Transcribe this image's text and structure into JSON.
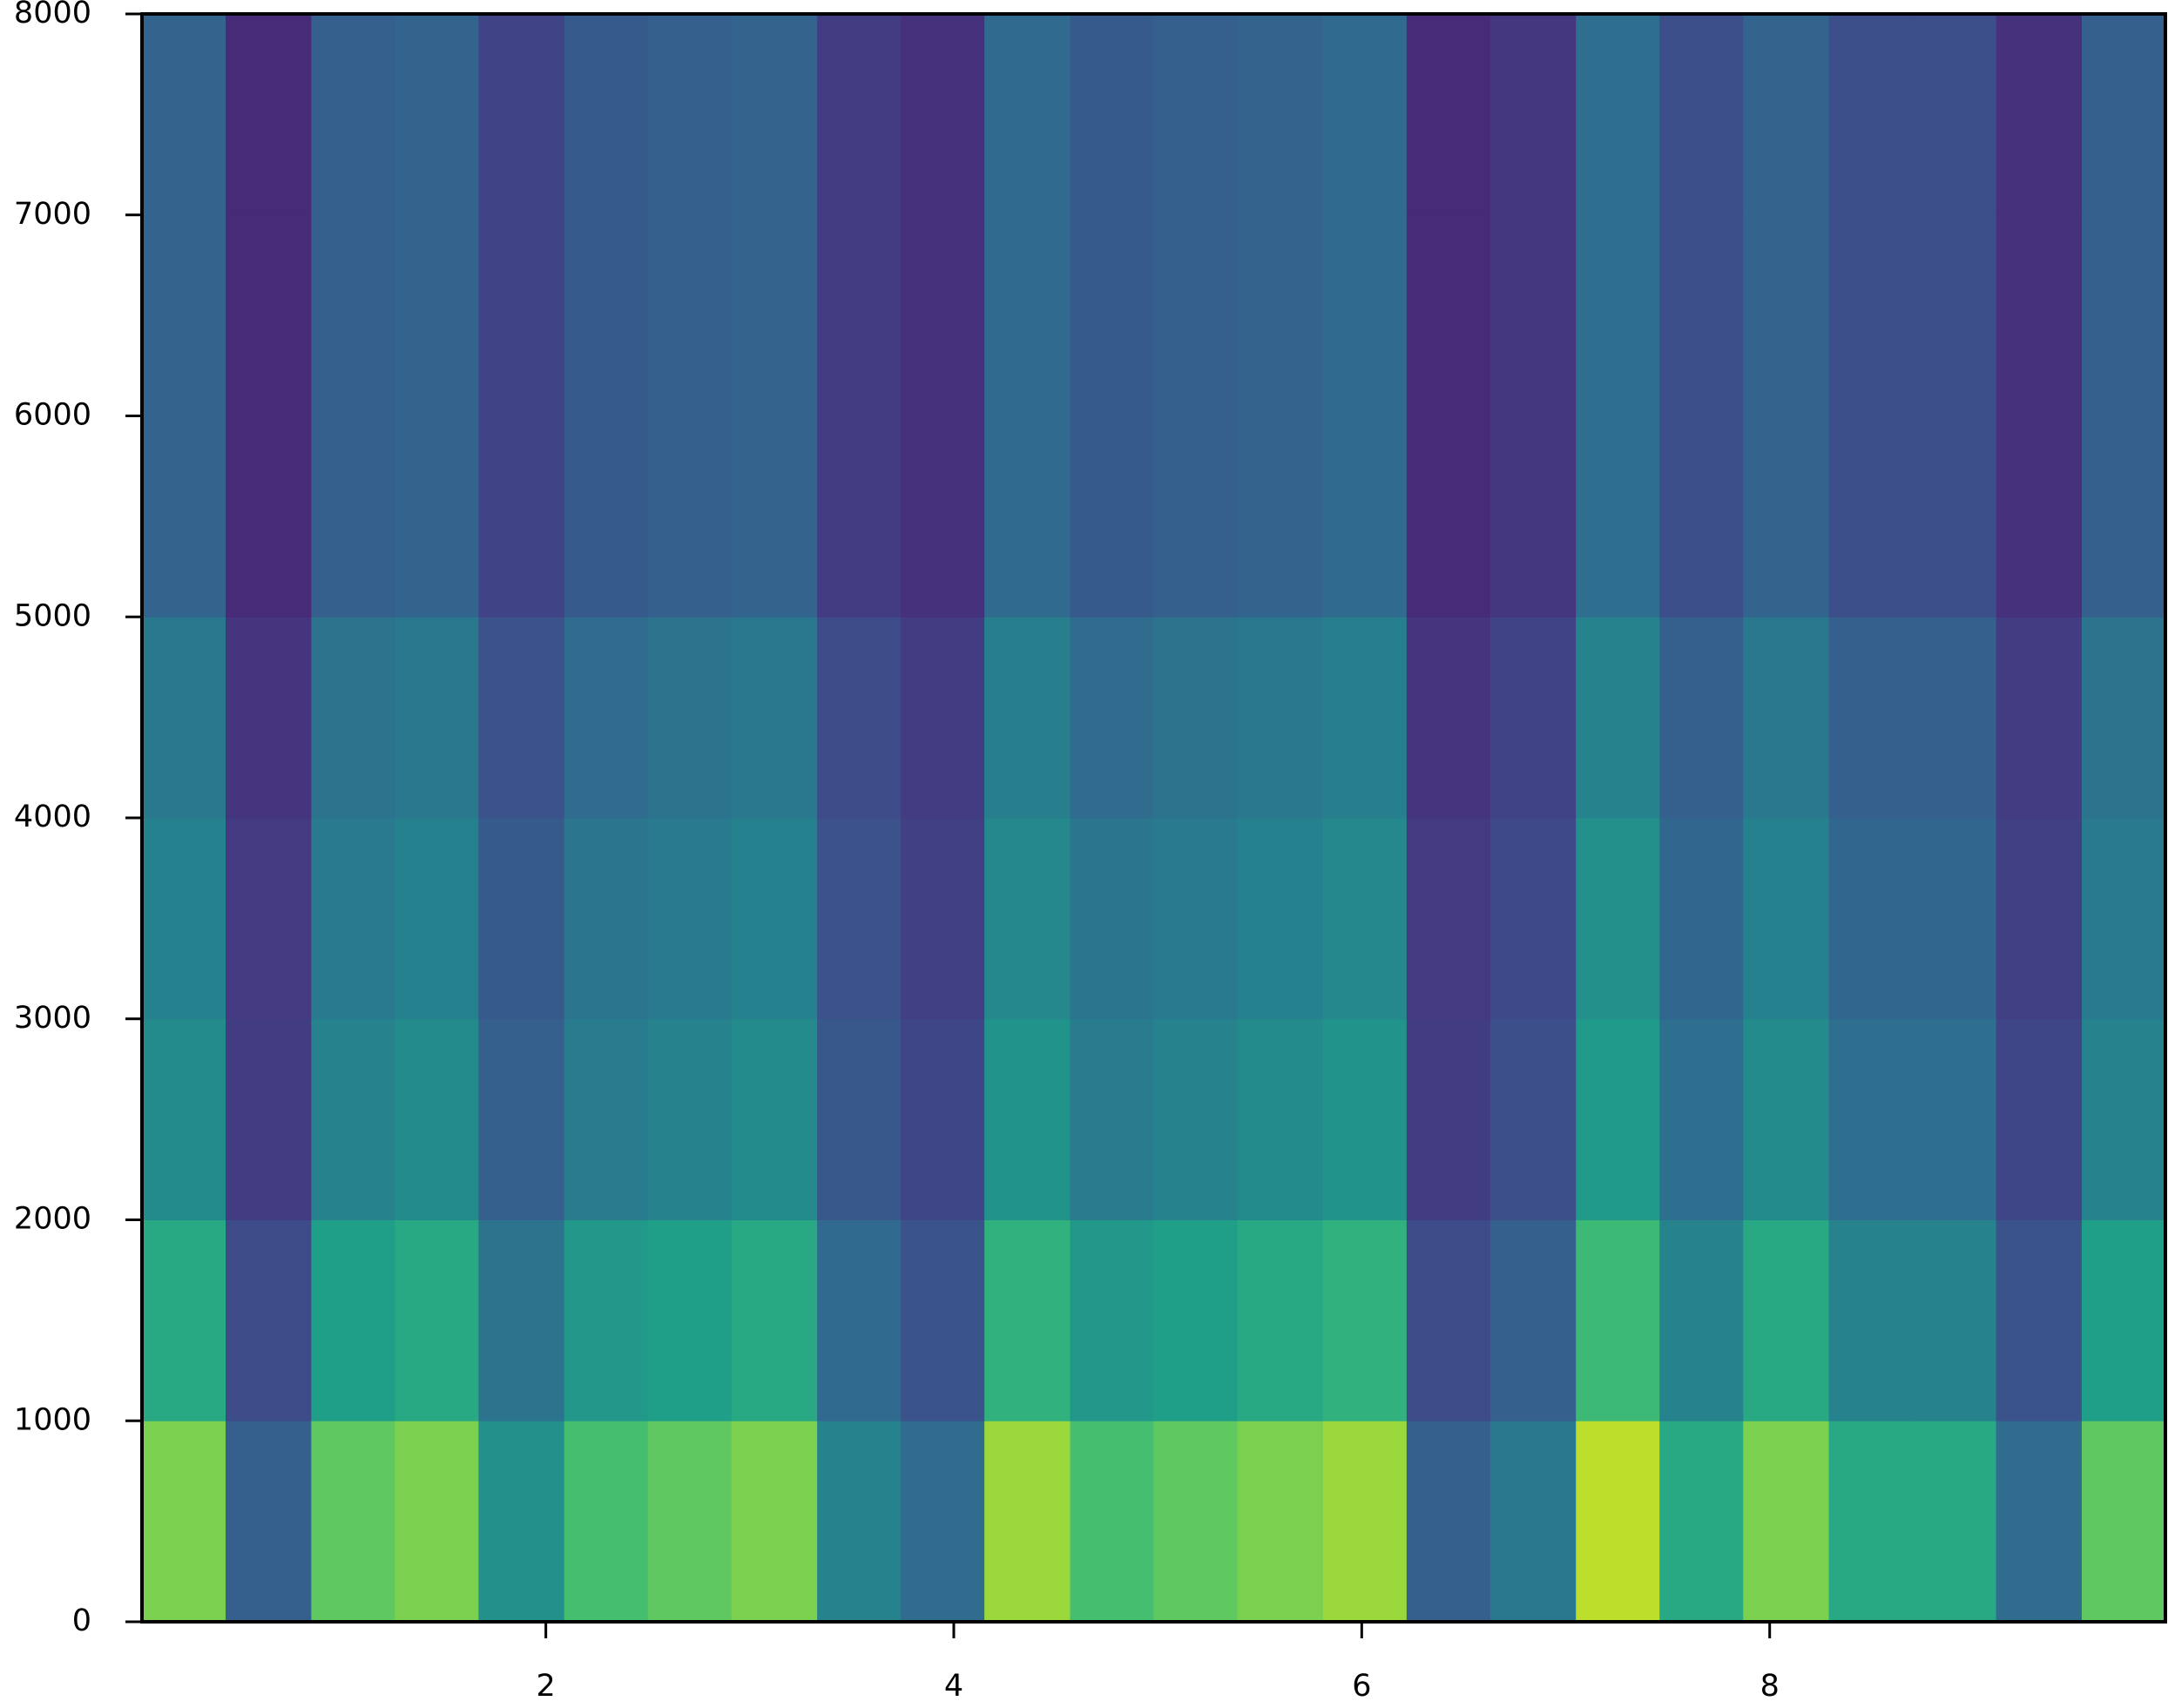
{
  "chart_data": {
    "type": "heatmap",
    "colormap": "viridis",
    "clim": [
      0,
      1
    ],
    "x_bins": [
      0.02,
      0.43,
      0.85,
      1.26,
      1.67,
      2.09,
      2.5,
      2.91,
      3.33,
      3.74,
      4.15,
      4.57,
      4.98,
      5.39,
      5.81,
      6.22,
      6.63,
      7.05,
      7.46,
      7.87,
      8.29,
      8.7,
      9.11,
      9.53,
      9.94
    ],
    "y_bins": [
      0,
      1000,
      2000,
      3000,
      4000,
      5000,
      6000,
      7000,
      8000
    ],
    "values": [
      [
        0.8,
        0.3,
        0.75,
        0.8,
        0.5,
        0.7,
        0.75,
        0.8,
        0.45,
        0.35,
        0.85,
        0.7,
        0.75,
        0.8,
        0.85,
        0.3,
        0.4,
        0.9,
        0.6,
        0.8,
        0.6,
        0.6,
        0.35,
        0.75
      ],
      [
        0.6,
        0.23,
        0.56,
        0.6,
        0.38,
        0.53,
        0.56,
        0.6,
        0.34,
        0.26,
        0.64,
        0.53,
        0.56,
        0.6,
        0.64,
        0.23,
        0.3,
        0.68,
        0.45,
        0.6,
        0.45,
        0.45,
        0.26,
        0.56
      ],
      [
        0.48,
        0.18,
        0.45,
        0.48,
        0.3,
        0.42,
        0.45,
        0.48,
        0.27,
        0.21,
        0.51,
        0.42,
        0.45,
        0.48,
        0.51,
        0.18,
        0.24,
        0.54,
        0.36,
        0.48,
        0.36,
        0.36,
        0.21,
        0.45
      ],
      [
        0.44,
        0.17,
        0.41,
        0.44,
        0.28,
        0.39,
        0.41,
        0.44,
        0.25,
        0.19,
        0.47,
        0.39,
        0.41,
        0.44,
        0.47,
        0.17,
        0.22,
        0.5,
        0.33,
        0.44,
        0.33,
        0.33,
        0.19,
        0.41
      ],
      [
        0.4,
        0.15,
        0.38,
        0.4,
        0.25,
        0.35,
        0.38,
        0.4,
        0.23,
        0.18,
        0.43,
        0.35,
        0.38,
        0.4,
        0.43,
        0.15,
        0.2,
        0.45,
        0.3,
        0.4,
        0.3,
        0.3,
        0.18,
        0.38
      ],
      [
        0.32,
        0.12,
        0.3,
        0.32,
        0.2,
        0.28,
        0.3,
        0.32,
        0.18,
        0.14,
        0.34,
        0.28,
        0.3,
        0.32,
        0.34,
        0.12,
        0.16,
        0.36,
        0.24,
        0.32,
        0.24,
        0.24,
        0.14,
        0.3
      ],
      [
        0.32,
        0.12,
        0.3,
        0.32,
        0.2,
        0.28,
        0.3,
        0.32,
        0.18,
        0.14,
        0.34,
        0.28,
        0.3,
        0.32,
        0.34,
        0.12,
        0.16,
        0.36,
        0.24,
        0.32,
        0.24,
        0.24,
        0.14,
        0.3
      ],
      [
        0.32,
        0.12,
        0.3,
        0.32,
        0.2,
        0.28,
        0.3,
        0.32,
        0.18,
        0.14,
        0.34,
        0.28,
        0.3,
        0.32,
        0.34,
        0.12,
        0.16,
        0.36,
        0.24,
        0.32,
        0.24,
        0.24,
        0.14,
        0.3
      ]
    ],
    "xlim": [
      0.02,
      9.94
    ],
    "xticks": [
      2,
      4,
      6,
      8
    ],
    "ylim": [
      0,
      8000
    ],
    "yticks": [
      0,
      1000,
      2000,
      3000,
      4000,
      5000,
      6000,
      7000,
      8000
    ]
  }
}
